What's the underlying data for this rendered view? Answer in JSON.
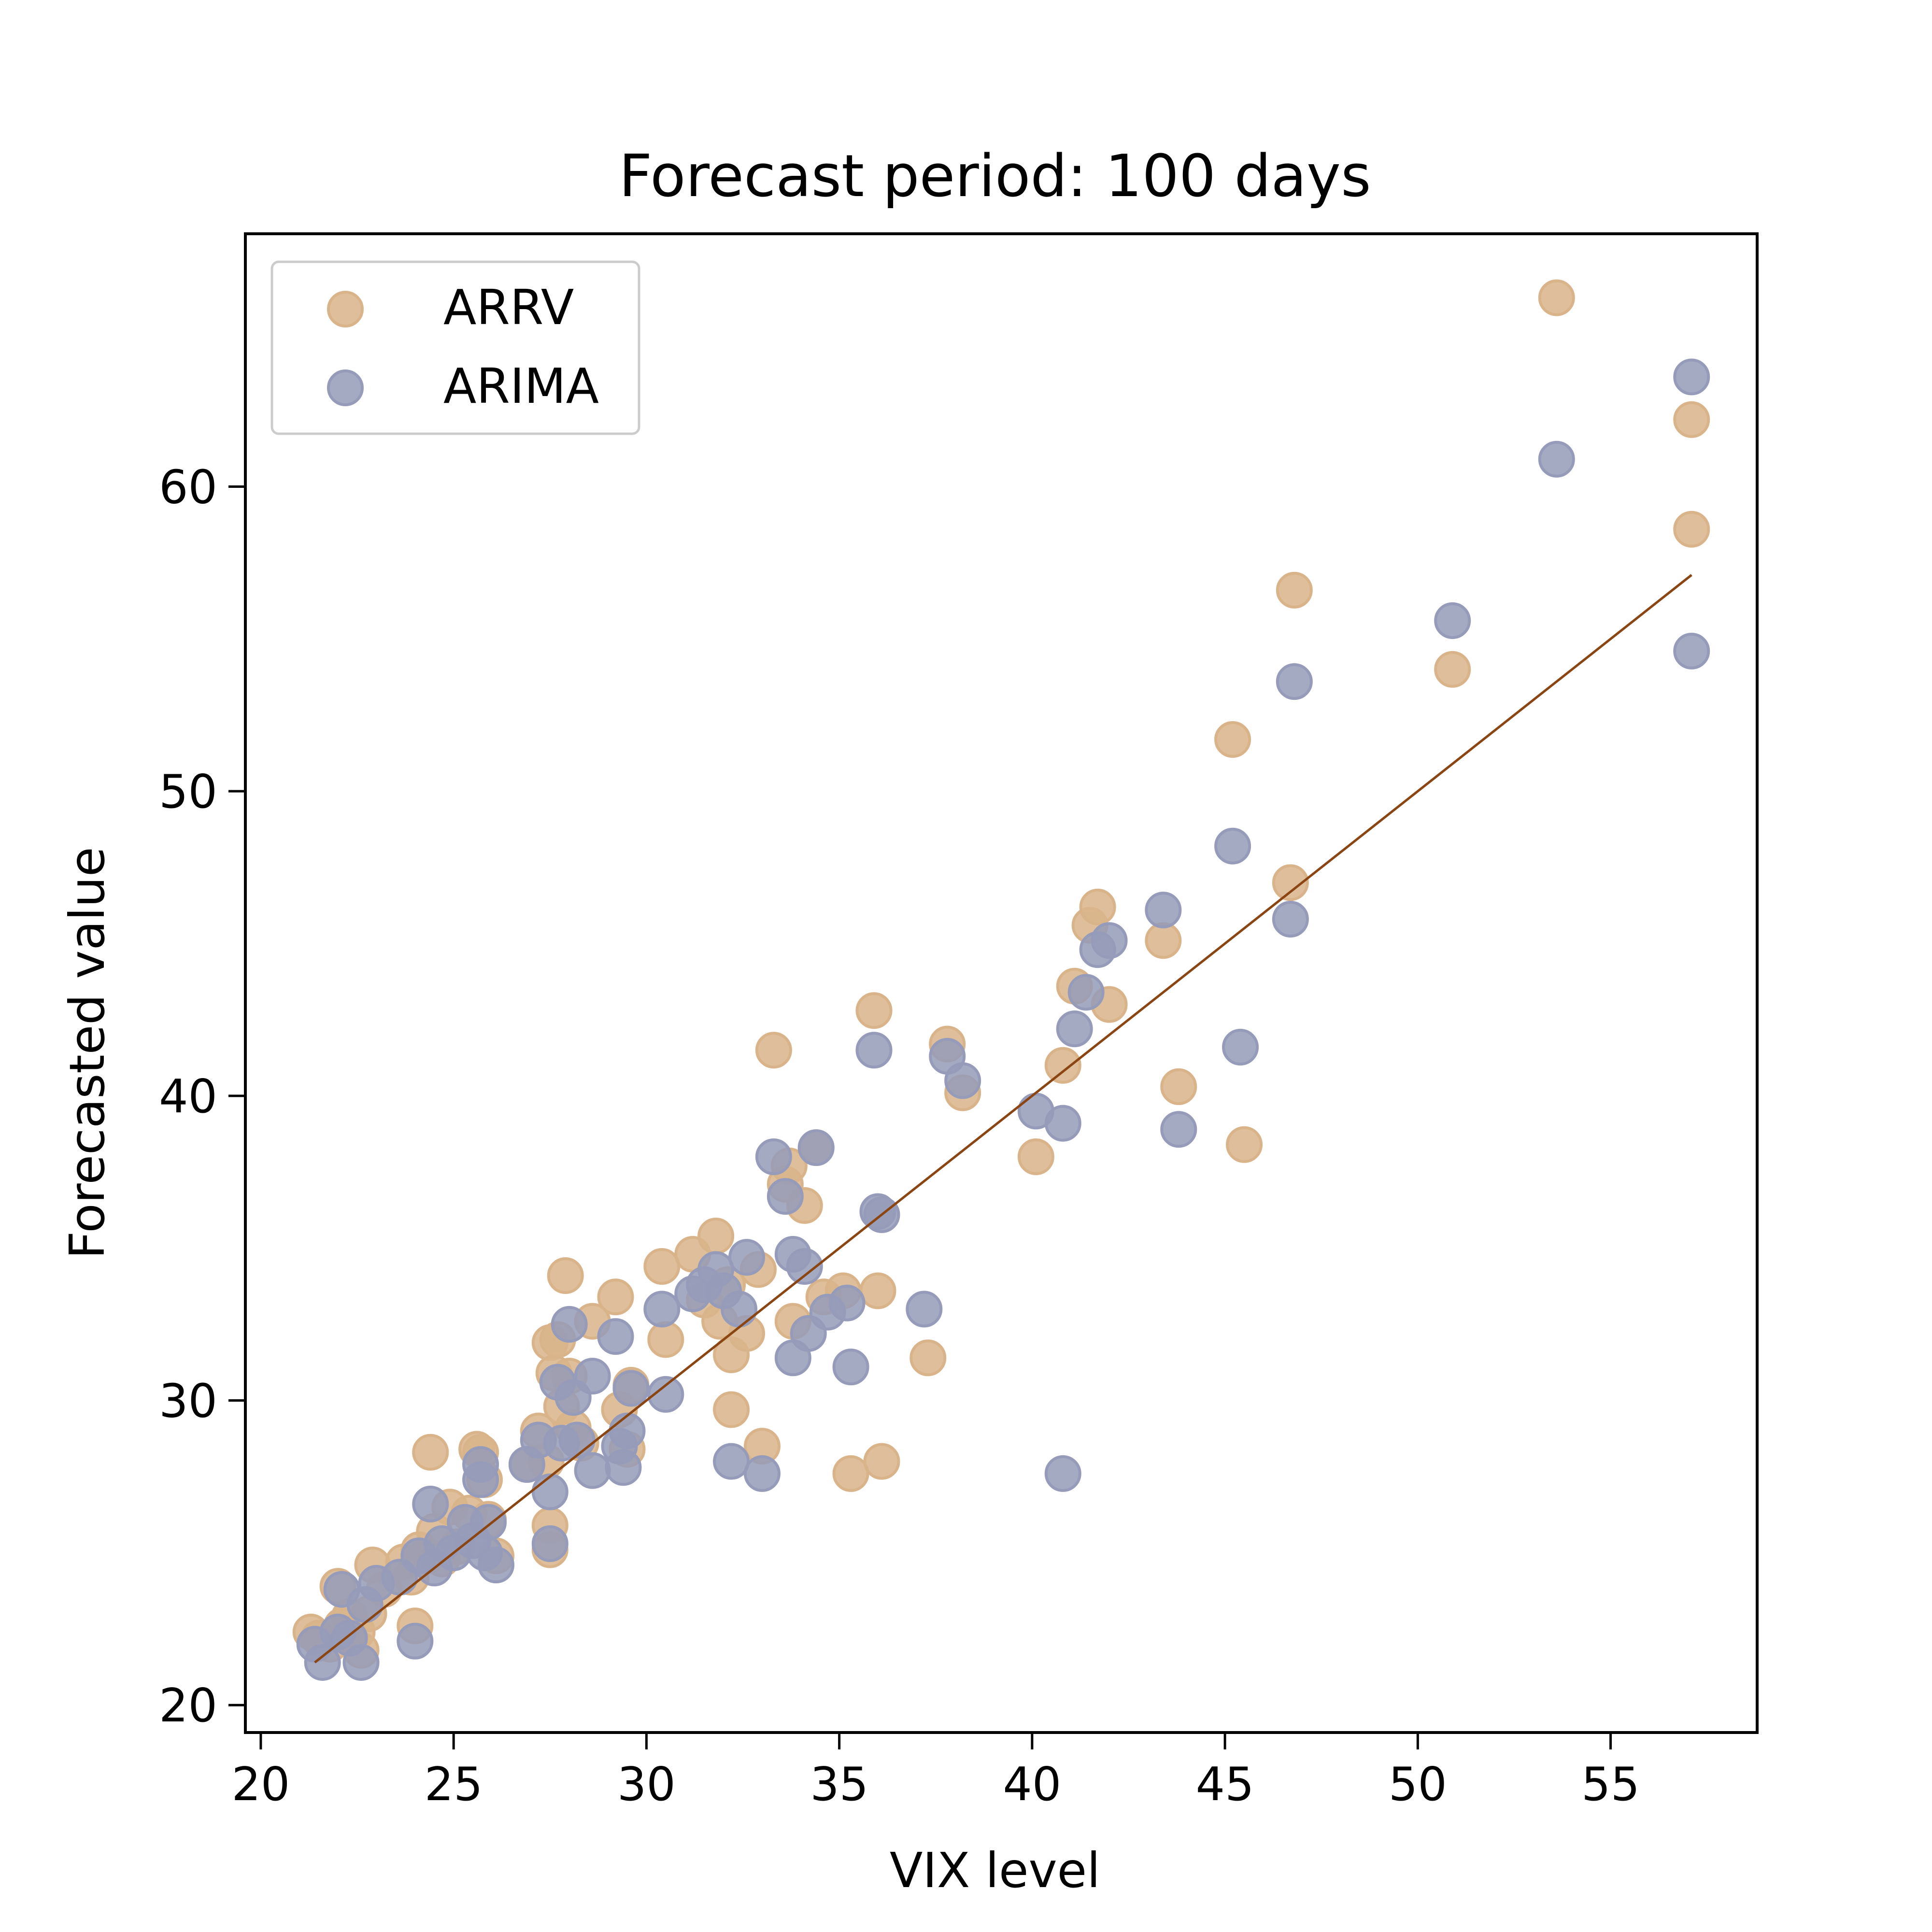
{
  "chart_data": {
    "type": "scatter",
    "title": "Forecast period: 100 days",
    "xlabel": "VIX level",
    "ylabel": "Forecasted value",
    "xlim": [
      19.6,
      58.8
    ],
    "ylim": [
      19.1,
      68.3
    ],
    "xticks": [
      "20",
      "25",
      "30",
      "35",
      "40",
      "45",
      "50",
      "55"
    ],
    "yticks": [
      "20",
      "30",
      "40",
      "50",
      "60"
    ],
    "legend_position": "top-left",
    "grid": false,
    "colors": {
      "ARRV": "#d9b48a",
      "ARIMA": "#959bb8",
      "line": "#8b4513",
      "frame": "#000000"
    },
    "line": {
      "x": [
        21.4,
        57.1
      ],
      "y": [
        21.4,
        57.1
      ]
    },
    "series": [
      {
        "name": "ARRV",
        "points": [
          [
            21.3,
            22.4
          ],
          [
            21.5,
            22.2
          ],
          [
            21.8,
            22.0
          ],
          [
            22.0,
            23.9
          ],
          [
            22.1,
            22.6
          ],
          [
            22.3,
            22.9
          ],
          [
            22.5,
            22.4
          ],
          [
            22.6,
            21.8
          ],
          [
            22.8,
            23.0
          ],
          [
            22.9,
            24.6
          ],
          [
            23.2,
            23.8
          ],
          [
            23.7,
            24.7
          ],
          [
            23.9,
            24.2
          ],
          [
            24.0,
            22.6
          ],
          [
            24.1,
            25.1
          ],
          [
            24.3,
            24.9
          ],
          [
            24.4,
            28.3
          ],
          [
            24.5,
            25.7
          ],
          [
            24.7,
            24.8
          ],
          [
            24.9,
            26.5
          ],
          [
            25.1,
            25.2
          ],
          [
            25.4,
            26.3
          ],
          [
            25.6,
            28.4
          ],
          [
            25.7,
            28.3
          ],
          [
            25.8,
            27.4
          ],
          [
            25.9,
            26.1
          ],
          [
            26.1,
            24.9
          ],
          [
            26.9,
            27.9
          ],
          [
            27.2,
            29.0
          ],
          [
            27.4,
            28.0
          ],
          [
            27.5,
            31.9
          ],
          [
            27.6,
            30.9
          ],
          [
            27.7,
            32.0
          ],
          [
            27.5,
            25.9
          ],
          [
            27.5,
            25.1
          ],
          [
            27.8,
            29.8
          ],
          [
            27.9,
            34.1
          ],
          [
            28.0,
            30.8
          ],
          [
            28.1,
            29.1
          ],
          [
            28.3,
            28.6
          ],
          [
            28.6,
            32.6
          ],
          [
            29.2,
            33.4
          ],
          [
            29.3,
            29.7
          ],
          [
            29.5,
            28.4
          ],
          [
            29.6,
            30.5
          ],
          [
            30.4,
            34.4
          ],
          [
            30.5,
            32.0
          ],
          [
            31.2,
            34.8
          ],
          [
            31.5,
            33.3
          ],
          [
            31.8,
            35.4
          ],
          [
            31.9,
            32.6
          ],
          [
            32.1,
            33.8
          ],
          [
            32.2,
            31.5
          ],
          [
            32.2,
            29.7
          ],
          [
            32.6,
            32.2
          ],
          [
            32.9,
            34.3
          ],
          [
            33.0,
            28.5
          ],
          [
            33.3,
            41.5
          ],
          [
            33.6,
            37.1
          ],
          [
            33.7,
            37.7
          ],
          [
            33.8,
            32.6
          ],
          [
            34.1,
            36.4
          ],
          [
            34.4,
            38.3
          ],
          [
            34.6,
            33.4
          ],
          [
            35.1,
            33.6
          ],
          [
            35.3,
            27.6
          ],
          [
            35.9,
            42.8
          ],
          [
            36.0,
            33.6
          ],
          [
            36.1,
            28.0
          ],
          [
            37.3,
            31.4
          ],
          [
            37.8,
            41.7
          ],
          [
            38.2,
            40.1
          ],
          [
            40.1,
            38.0
          ],
          [
            40.8,
            41.0
          ],
          [
            41.1,
            43.6
          ],
          [
            41.5,
            45.6
          ],
          [
            41.7,
            46.2
          ],
          [
            42.0,
            43.0
          ],
          [
            43.4,
            45.1
          ],
          [
            43.8,
            40.3
          ],
          [
            45.2,
            51.7
          ],
          [
            45.5,
            38.4
          ],
          [
            46.7,
            47.0
          ],
          [
            46.8,
            56.6
          ],
          [
            50.9,
            54.0
          ],
          [
            53.6,
            66.2
          ],
          [
            57.1,
            62.2
          ],
          [
            57.1,
            58.6
          ]
        ]
      },
      {
        "name": "ARIMA",
        "points": [
          [
            21.4,
            22.0
          ],
          [
            21.6,
            21.4
          ],
          [
            22.0,
            22.4
          ],
          [
            22.1,
            23.8
          ],
          [
            22.3,
            22.2
          ],
          [
            22.6,
            21.4
          ],
          [
            22.7,
            23.3
          ],
          [
            23.0,
            24.0
          ],
          [
            23.6,
            24.2
          ],
          [
            24.0,
            22.1
          ],
          [
            24.1,
            24.9
          ],
          [
            24.4,
            26.6
          ],
          [
            24.5,
            24.5
          ],
          [
            24.7,
            25.3
          ],
          [
            25.0,
            25.0
          ],
          [
            25.3,
            26.0
          ],
          [
            25.5,
            25.4
          ],
          [
            25.7,
            27.9
          ],
          [
            25.8,
            25.0
          ],
          [
            25.9,
            26.0
          ],
          [
            26.1,
            24.6
          ],
          [
            25.7,
            27.4
          ],
          [
            26.9,
            27.9
          ],
          [
            27.2,
            28.7
          ],
          [
            27.5,
            27.0
          ],
          [
            27.5,
            25.3
          ],
          [
            27.7,
            30.6
          ],
          [
            27.8,
            28.6
          ],
          [
            28.0,
            32.5
          ],
          [
            28.1,
            30.1
          ],
          [
            28.2,
            28.7
          ],
          [
            28.6,
            30.8
          ],
          [
            28.6,
            27.7
          ],
          [
            29.2,
            32.1
          ],
          [
            29.3,
            28.5
          ],
          [
            29.4,
            27.8
          ],
          [
            29.5,
            29.0
          ],
          [
            29.6,
            30.4
          ],
          [
            30.4,
            33.0
          ],
          [
            30.5,
            30.2
          ],
          [
            31.2,
            33.5
          ],
          [
            31.5,
            33.8
          ],
          [
            31.8,
            34.3
          ],
          [
            32.0,
            33.6
          ],
          [
            32.2,
            28.0
          ],
          [
            32.4,
            33.0
          ],
          [
            32.6,
            34.7
          ],
          [
            33.0,
            27.6
          ],
          [
            33.3,
            38.0
          ],
          [
            33.6,
            36.7
          ],
          [
            33.8,
            34.8
          ],
          [
            33.8,
            31.4
          ],
          [
            34.1,
            34.4
          ],
          [
            34.2,
            32.2
          ],
          [
            34.4,
            38.3
          ],
          [
            34.7,
            32.9
          ],
          [
            35.2,
            33.2
          ],
          [
            35.3,
            31.1
          ],
          [
            35.9,
            41.5
          ],
          [
            36.0,
            36.2
          ],
          [
            36.1,
            36.1
          ],
          [
            37.2,
            33.0
          ],
          [
            37.8,
            41.3
          ],
          [
            38.2,
            40.5
          ],
          [
            40.1,
            39.5
          ],
          [
            40.8,
            39.1
          ],
          [
            41.1,
            42.2
          ],
          [
            41.4,
            43.4
          ],
          [
            41.7,
            44.8
          ],
          [
            42.0,
            45.1
          ],
          [
            40.8,
            27.6
          ],
          [
            43.4,
            46.1
          ],
          [
            43.8,
            38.9
          ],
          [
            45.2,
            48.2
          ],
          [
            45.4,
            41.6
          ],
          [
            46.7,
            45.8
          ],
          [
            46.8,
            53.6
          ],
          [
            50.9,
            55.6
          ],
          [
            53.6,
            60.9
          ],
          [
            57.1,
            63.6
          ],
          [
            57.1,
            54.6
          ]
        ]
      }
    ]
  }
}
